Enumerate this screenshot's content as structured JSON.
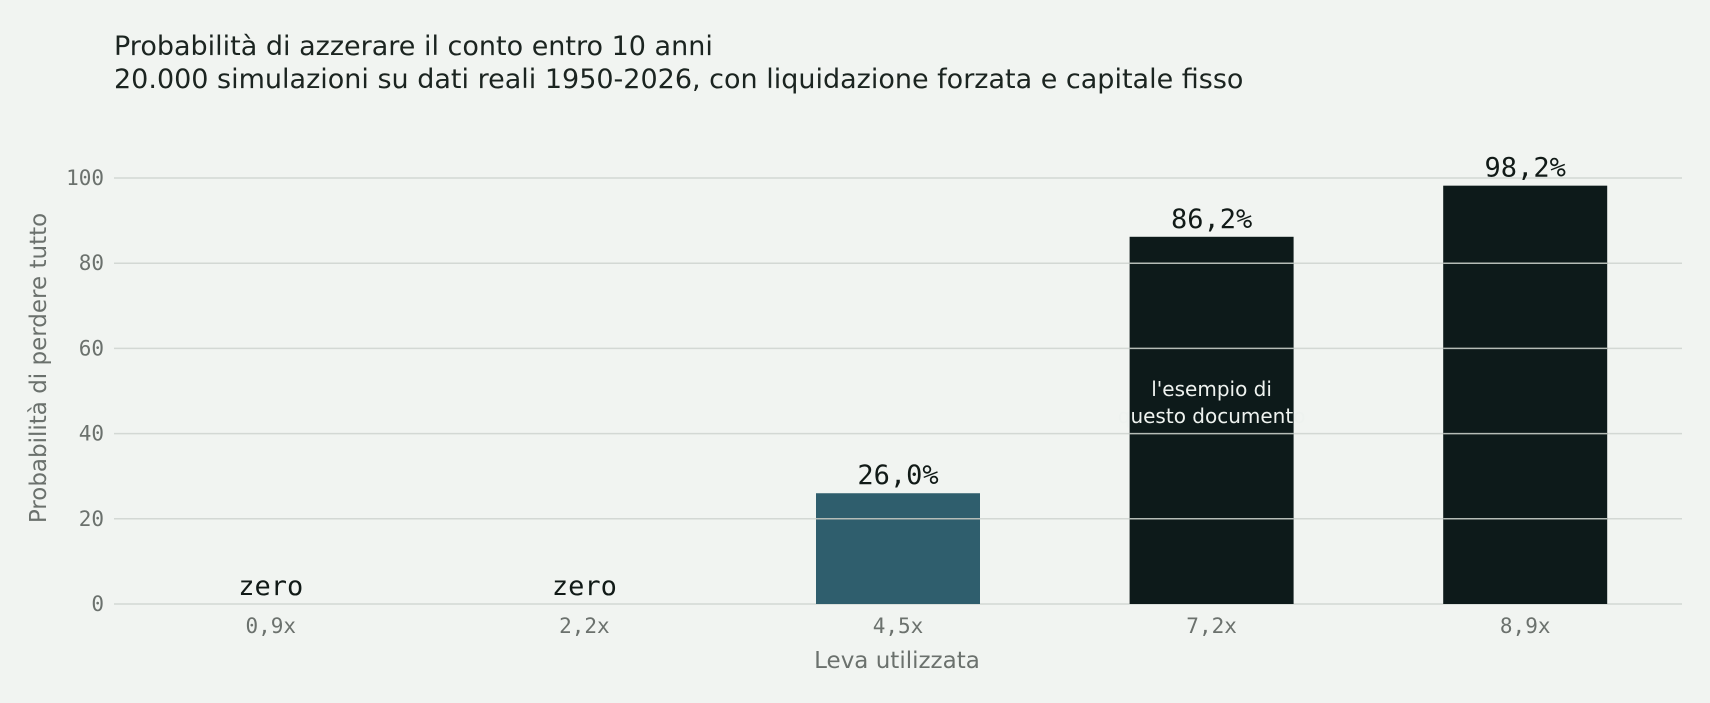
{
  "chart_data": {
    "type": "bar",
    "title": "Probabilità di azzerare il conto entro 10 anni",
    "subtitle": "20.000 simulazioni su dati reali 1950-2026, con liquidazione forzata e capitale fisso",
    "xlabel": "Leva utilizzata",
    "ylabel": "Probabilità di perdere tutto",
    "ylim": [
      0,
      100
    ],
    "yticks": [
      0,
      20,
      40,
      60,
      80,
      100
    ],
    "grid": true,
    "categories": [
      "0,9x",
      "2,2x",
      "4,5x",
      "7,2x",
      "8,9x"
    ],
    "values": [
      0,
      0,
      26.0,
      86.2,
      98.2
    ],
    "value_labels": [
      "zero",
      "zero",
      "26,0%",
      "86,2%",
      "98,2%"
    ],
    "bar_colors": [
      "#2f5e6d",
      "#2f5e6d",
      "#2f5e6d",
      "#0d1a1a",
      "#0d1a1a"
    ],
    "annotation": {
      "category": "7,2x",
      "lines": [
        "l'esempio di",
        "questo documento"
      ]
    }
  }
}
